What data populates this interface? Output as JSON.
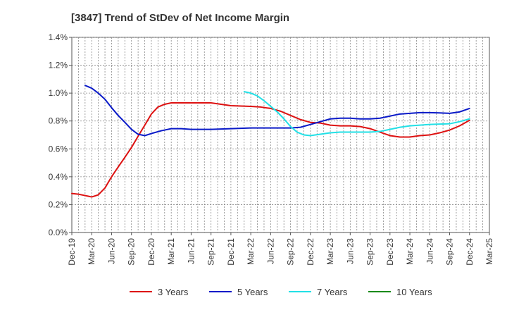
{
  "chart_data": {
    "type": "line",
    "title": "[3847]  Trend of StDev of Net Income Margin",
    "xlabel": "",
    "ylabel": "",
    "categories": [
      "Dec-19",
      "Mar-20",
      "Jun-20",
      "Sep-20",
      "Dec-20",
      "Mar-21",
      "Jun-21",
      "Sep-21",
      "Dec-21",
      "Mar-22",
      "Jun-22",
      "Sep-22",
      "Dec-22",
      "Mar-23",
      "Jun-23",
      "Sep-23",
      "Dec-23",
      "Mar-24",
      "Jun-24",
      "Sep-24",
      "Dec-24",
      "Mar-25"
    ],
    "x_index_range": [
      0,
      21
    ],
    "ylim": [
      0,
      1.4
    ],
    "yticks": [
      0.0,
      0.2,
      0.4,
      0.6,
      0.8,
      1.0,
      1.2,
      1.4
    ],
    "ytick_labels": [
      "0.0%",
      "0.2%",
      "0.4%",
      "0.6%",
      "0.8%",
      "1.0%",
      "1.2%",
      "1.4%"
    ],
    "grid": true,
    "legend_position": "bottom",
    "series": [
      {
        "name": "3 Years",
        "color": "#dd1111",
        "points": [
          [
            0,
            0.28
          ],
          [
            0.33,
            0.275
          ],
          [
            0.67,
            0.265
          ],
          [
            1,
            0.255
          ],
          [
            1.33,
            0.27
          ],
          [
            1.67,
            0.32
          ],
          [
            2,
            0.4
          ],
          [
            2.33,
            0.47
          ],
          [
            2.67,
            0.54
          ],
          [
            3,
            0.61
          ],
          [
            3.33,
            0.69
          ],
          [
            3.67,
            0.77
          ],
          [
            4,
            0.85
          ],
          [
            4.33,
            0.9
          ],
          [
            4.67,
            0.92
          ],
          [
            5,
            0.93
          ],
          [
            6,
            0.93
          ],
          [
            7,
            0.93
          ],
          [
            7.5,
            0.92
          ],
          [
            8,
            0.91
          ],
          [
            9,
            0.905
          ],
          [
            9.5,
            0.9
          ],
          [
            10,
            0.89
          ],
          [
            10.5,
            0.87
          ],
          [
            11,
            0.84
          ],
          [
            11.5,
            0.81
          ],
          [
            12,
            0.79
          ],
          [
            12.5,
            0.785
          ],
          [
            13,
            0.77
          ],
          [
            13.5,
            0.765
          ],
          [
            14,
            0.765
          ],
          [
            14.5,
            0.76
          ],
          [
            15,
            0.745
          ],
          [
            15.5,
            0.72
          ],
          [
            16,
            0.695
          ],
          [
            16.5,
            0.685
          ],
          [
            17,
            0.685
          ],
          [
            17.5,
            0.695
          ],
          [
            18,
            0.7
          ],
          [
            18.5,
            0.715
          ],
          [
            19,
            0.735
          ],
          [
            19.5,
            0.765
          ],
          [
            20,
            0.805
          ]
        ]
      },
      {
        "name": "5 Years",
        "color": "#0a1ac8",
        "points": [
          [
            0.67,
            1.055
          ],
          [
            1,
            1.035
          ],
          [
            1.33,
            1.0
          ],
          [
            1.67,
            0.955
          ],
          [
            2,
            0.895
          ],
          [
            2.33,
            0.84
          ],
          [
            2.67,
            0.79
          ],
          [
            3,
            0.74
          ],
          [
            3.33,
            0.705
          ],
          [
            3.67,
            0.695
          ],
          [
            4,
            0.71
          ],
          [
            4.5,
            0.73
          ],
          [
            5,
            0.745
          ],
          [
            5.5,
            0.745
          ],
          [
            6,
            0.74
          ],
          [
            7,
            0.74
          ],
          [
            8,
            0.745
          ],
          [
            9,
            0.75
          ],
          [
            10,
            0.75
          ],
          [
            11,
            0.75
          ],
          [
            11.5,
            0.755
          ],
          [
            12,
            0.775
          ],
          [
            12.5,
            0.795
          ],
          [
            13,
            0.815
          ],
          [
            13.5,
            0.82
          ],
          [
            14,
            0.82
          ],
          [
            14.5,
            0.815
          ],
          [
            15,
            0.815
          ],
          [
            15.5,
            0.82
          ],
          [
            16,
            0.835
          ],
          [
            16.5,
            0.85
          ],
          [
            17,
            0.855
          ],
          [
            17.5,
            0.86
          ],
          [
            18,
            0.86
          ],
          [
            18.5,
            0.858
          ],
          [
            19,
            0.855
          ],
          [
            19.5,
            0.865
          ],
          [
            20,
            0.89
          ]
        ]
      },
      {
        "name": "7 Years",
        "color": "#22e0e6",
        "points": [
          [
            8.67,
            1.01
          ],
          [
            9,
            1.0
          ],
          [
            9.33,
            0.98
          ],
          [
            9.67,
            0.945
          ],
          [
            10,
            0.905
          ],
          [
            10.33,
            0.865
          ],
          [
            10.67,
            0.815
          ],
          [
            11,
            0.76
          ],
          [
            11.33,
            0.72
          ],
          [
            11.67,
            0.7
          ],
          [
            12,
            0.695
          ],
          [
            12.5,
            0.705
          ],
          [
            13,
            0.715
          ],
          [
            13.5,
            0.72
          ],
          [
            14,
            0.72
          ],
          [
            14.5,
            0.72
          ],
          [
            15,
            0.72
          ],
          [
            15.5,
            0.725
          ],
          [
            16,
            0.74
          ],
          [
            16.5,
            0.755
          ],
          [
            17,
            0.765
          ],
          [
            17.5,
            0.77
          ],
          [
            18,
            0.775
          ],
          [
            18.5,
            0.778
          ],
          [
            19,
            0.78
          ],
          [
            19.5,
            0.795
          ],
          [
            20,
            0.815
          ]
        ]
      },
      {
        "name": "10 Years",
        "color": "#1a8a1a",
        "points": []
      }
    ]
  }
}
